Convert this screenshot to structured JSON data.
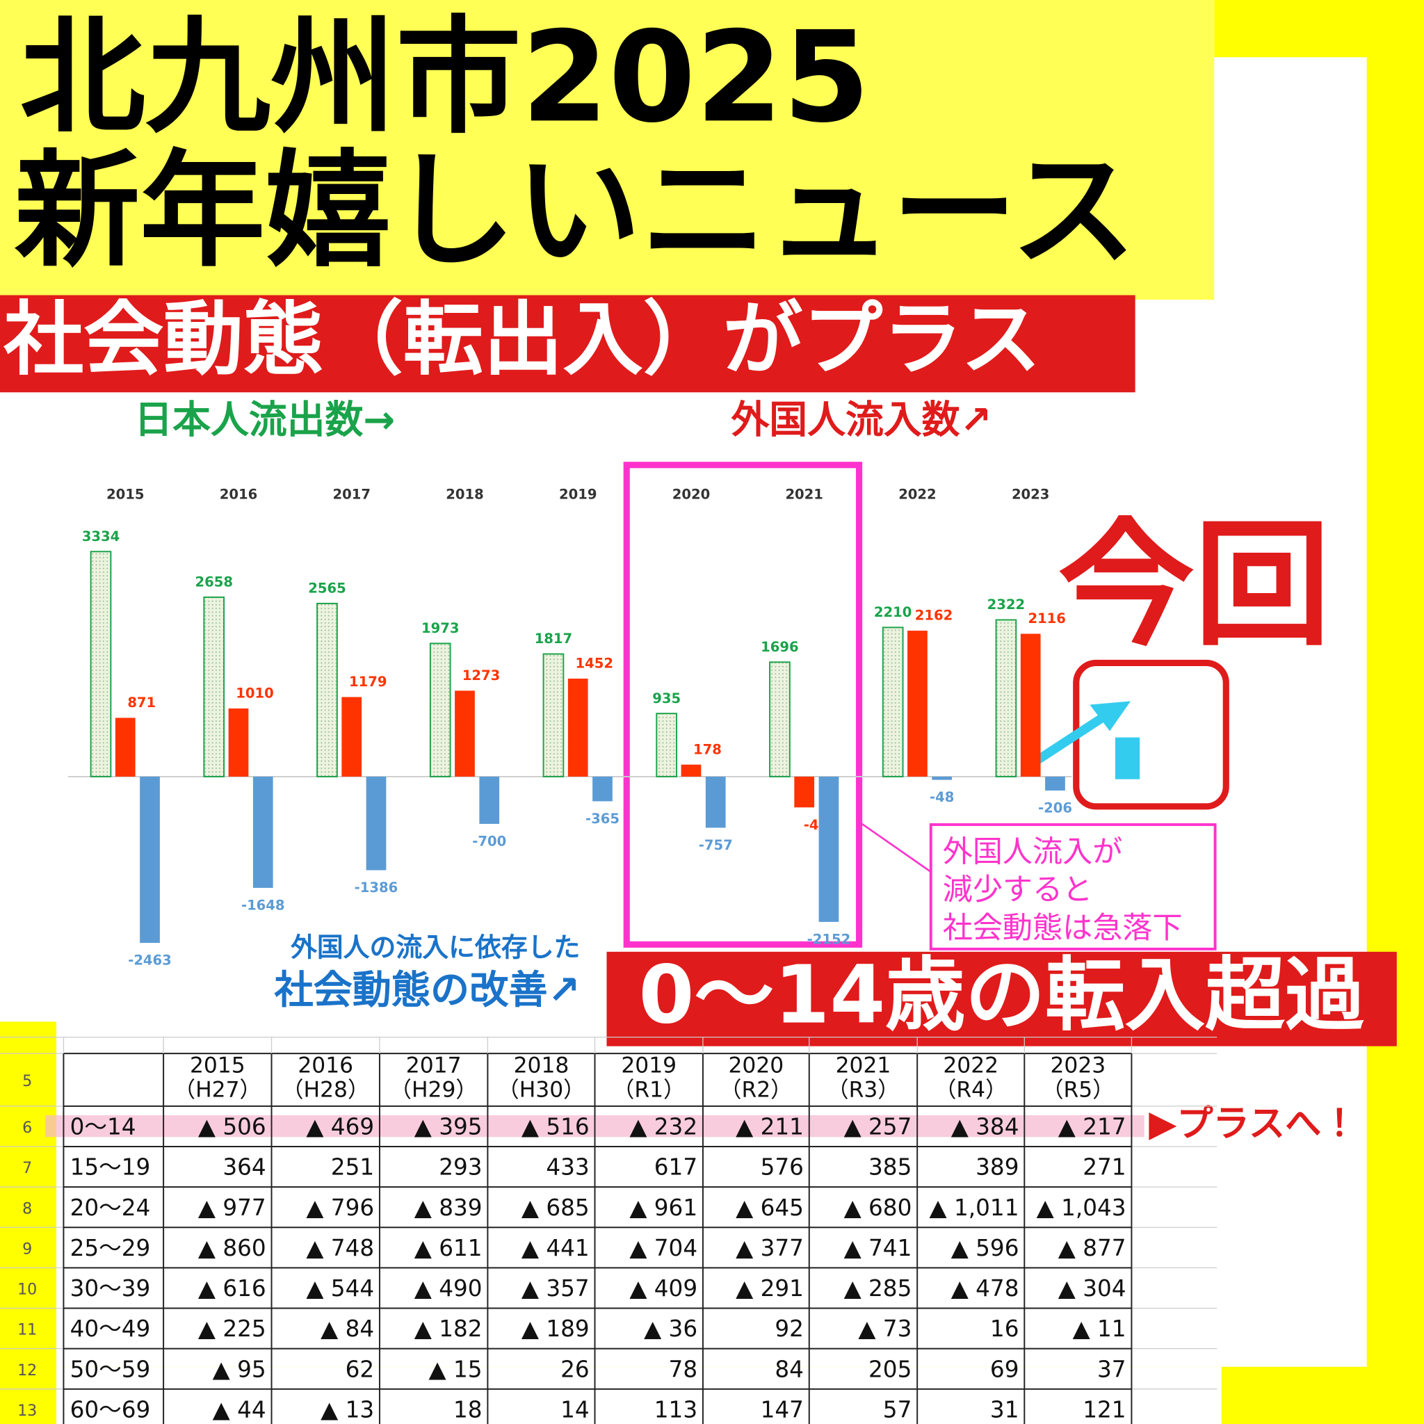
{
  "header": {
    "title_lines": [
      "北九州市2025",
      "新年嬉しいニュース"
    ],
    "subtitle": "社会動態（転出入）がプラス"
  },
  "chart_data": {
    "type": "bar",
    "categories": [
      "2015",
      "2016",
      "2017",
      "2018",
      "2019",
      "2020",
      "2021",
      "2022",
      "2023"
    ],
    "series": [
      {
        "name": "日本人流出数→",
        "color": "#1aa34a",
        "values": [
          3334,
          2658,
          2565,
          1973,
          1817,
          935,
          1696,
          2210,
          2322
        ]
      },
      {
        "name": "外国人流入数↗",
        "color": "#ff3300",
        "values": [
          871,
          1010,
          1179,
          1273,
          1452,
          178,
          -456,
          2162,
          2116
        ]
      },
      {
        "color": "#5b9bd5",
        "values": [
          -2463,
          -1648,
          -1386,
          -700,
          -365,
          -757,
          -2152,
          -48,
          -206
        ]
      }
    ],
    "ylim": [
      -2500,
      3500
    ]
  },
  "annotations": {
    "highlight_note": [
      "外国人流入が",
      "減少すると",
      "社会動態は急落下"
    ],
    "dependence_note": [
      "外国人の流入に依存した",
      "社会動態の改善↗"
    ],
    "current": "今回",
    "banner": "0〜14歳の転入超過",
    "plus": "▶プラスへ！"
  },
  "table": {
    "row_numbers": [
      5,
      6,
      7,
      8,
      9,
      10,
      11,
      12,
      13
    ],
    "header": [
      [
        "2015",
        "（H27）"
      ],
      [
        "2016",
        "（H28）"
      ],
      [
        "2017",
        "（H29）"
      ],
      [
        "2018",
        "（H30）"
      ],
      [
        "2019",
        "（R1）"
      ],
      [
        "2020",
        "（R2）"
      ],
      [
        "2021",
        "（R3）"
      ],
      [
        "2022",
        "（R4）"
      ],
      [
        "2023",
        "（R5）"
      ]
    ],
    "rows": [
      [
        "0〜14",
        "▲ 506",
        "▲ 469",
        "▲ 395",
        "▲ 516",
        "▲ 232",
        "▲ 211",
        "▲ 257",
        "▲ 384",
        "▲ 217"
      ],
      [
        "15〜19",
        "364",
        "251",
        "293",
        "433",
        "617",
        "576",
        "385",
        "389",
        "271"
      ],
      [
        "20〜24",
        "▲ 977",
        "▲ 796",
        "▲ 839",
        "▲ 685",
        "▲ 961",
        "▲ 645",
        "▲ 680",
        "▲ 1,011",
        "▲ 1,043"
      ],
      [
        "25〜29",
        "▲ 860",
        "▲ 748",
        "▲ 611",
        "▲ 441",
        "▲ 704",
        "▲ 377",
        "▲ 741",
        "▲ 596",
        "▲ 877"
      ],
      [
        "30〜39",
        "▲ 616",
        "▲ 544",
        "▲ 490",
        "▲ 357",
        "▲ 409",
        "▲ 291",
        "▲ 285",
        "▲ 478",
        "▲ 304"
      ],
      [
        "40〜49",
        "▲ 225",
        "▲ 84",
        "▲ 182",
        "▲ 189",
        "▲ 36",
        "92",
        "▲ 73",
        "16",
        "▲ 11"
      ],
      [
        "50〜59",
        "▲ 95",
        "62",
        "▲ 15",
        "26",
        "78",
        "84",
        "205",
        "69",
        "37"
      ],
      [
        "60〜69",
        "▲ 44",
        "▲ 13",
        "18",
        "14",
        "113",
        "147",
        "57",
        "31",
        "121"
      ]
    ]
  }
}
